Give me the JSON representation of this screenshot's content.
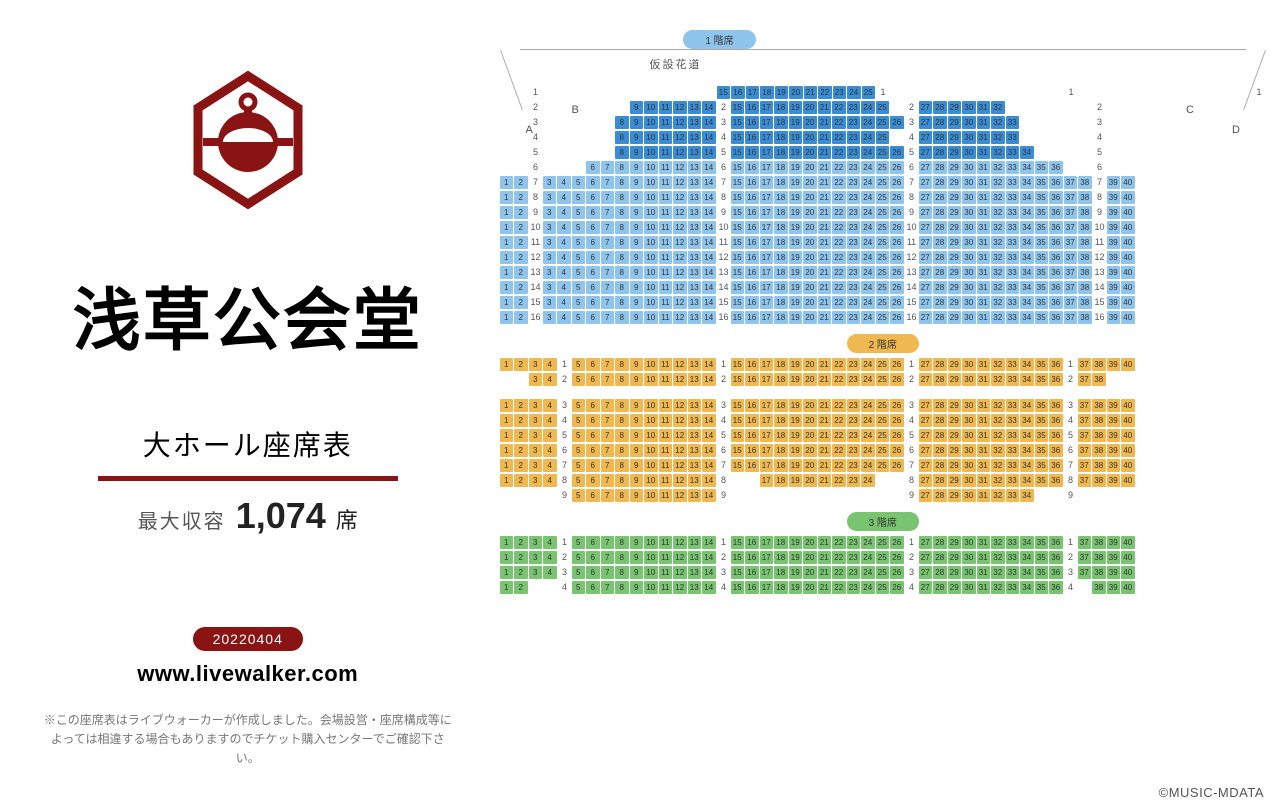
{
  "venue": {
    "title": "浅草公会堂",
    "hall_name": "大ホール座席表",
    "capacity_label": "最大収容",
    "capacity_number": "1,074",
    "capacity_suffix": "席",
    "date_badge": "20220404",
    "url": "www.livewalker.com",
    "disclaimer": "※この座席表はライブウォーカーが作成しました。会場設営・座席構成等によっては相違する場合もありますのでチケット購入センターでご確認下さい。",
    "copyright": "©MUSIC-MDATA",
    "stage_label": "仮設花道"
  },
  "colors": {
    "accent": "#8a1414",
    "floor1_seat": "#8fc5ed",
    "floor1_seat_dark": "#3a8cd4",
    "floor2_seat": "#f0b850",
    "floor3_seat": "#78c470",
    "floor1_label_bg": "#8fc5ed",
    "floor2_label_bg": "#f0b850",
    "floor3_label_bg": "#78c470"
  },
  "floors": [
    {
      "id": "f1",
      "label": "1 階席",
      "seat_color": "#8fc5ed",
      "row_count": 16,
      "sections": [
        "A",
        "B",
        "C",
        "D"
      ]
    },
    {
      "id": "f2",
      "label": "2 階席",
      "seat_color": "#f0b850"
    },
    {
      "id": "f3",
      "label": "3 階席",
      "seat_color": "#78c470"
    }
  ],
  "f1_config": {
    "dark_rows_B": [
      1,
      2,
      3,
      4,
      5
    ],
    "dark_rows_center": [
      1,
      2,
      3,
      4,
      5
    ],
    "dark_rows_C": [
      2,
      3,
      4,
      5
    ],
    "rows": [
      {
        "r": 1,
        "A": [],
        "B": [
          15,
          25
        ],
        "Bstart": 15,
        "center": [],
        "C": [],
        "D": []
      },
      {
        "r": 2,
        "A": [],
        "B": [
          9,
          14
        ],
        "center": [
          15,
          25
        ],
        "C": [
          27,
          32
        ],
        "D": []
      },
      {
        "r": 3,
        "A": [],
        "B": [
          8,
          14
        ],
        "center": [
          15,
          26
        ],
        "C": [
          27,
          33
        ],
        "D": []
      },
      {
        "r": 4,
        "A": [],
        "B": [
          8,
          14
        ],
        "center": [
          15,
          25
        ],
        "C": [
          27,
          33
        ],
        "D": []
      },
      {
        "r": 5,
        "A": [],
        "B": [
          8,
          14
        ],
        "center": [
          15,
          26
        ],
        "C": [
          27,
          34
        ],
        "D": []
      },
      {
        "r": 6,
        "A": [],
        "B": [
          6,
          14
        ],
        "center": [
          15,
          26
        ],
        "C": [
          27,
          36
        ],
        "D": []
      },
      {
        "r": 7,
        "A": [
          1,
          2
        ],
        "B": [
          3,
          14
        ],
        "center": [
          15,
          26
        ],
        "C": [
          27,
          38
        ],
        "D": [
          39,
          40
        ]
      },
      {
        "r": 8,
        "A": [
          1,
          2
        ],
        "B": [
          3,
          14
        ],
        "center": [
          15,
          26
        ],
        "C": [
          27,
          38
        ],
        "D": [
          39,
          40
        ]
      },
      {
        "r": 9,
        "A": [
          1,
          2
        ],
        "B": [
          3,
          14
        ],
        "center": [
          15,
          26
        ],
        "C": [
          27,
          38
        ],
        "D": [
          39,
          40
        ]
      },
      {
        "r": 10,
        "A": [
          1,
          2
        ],
        "B": [
          3,
          14
        ],
        "center": [
          15,
          26
        ],
        "C": [
          27,
          38
        ],
        "D": [
          39,
          40
        ]
      },
      {
        "r": 11,
        "A": [
          1,
          2
        ],
        "B": [
          3,
          14
        ],
        "center": [
          15,
          26
        ],
        "C": [
          27,
          38
        ],
        "D": [
          39,
          40
        ]
      },
      {
        "r": 12,
        "A": [
          1,
          2
        ],
        "B": [
          3,
          14
        ],
        "center": [
          15,
          26
        ],
        "C": [
          27,
          38
        ],
        "D": [
          39,
          40
        ]
      },
      {
        "r": 13,
        "A": [
          1,
          2
        ],
        "B": [
          3,
          14
        ],
        "center": [
          15,
          26
        ],
        "C": [
          27,
          38
        ],
        "D": [
          39,
          40
        ]
      },
      {
        "r": 14,
        "A": [
          1,
          2
        ],
        "B": [
          3,
          14
        ],
        "center": [
          15,
          26
        ],
        "C": [
          27,
          38
        ],
        "D": [
          39,
          40
        ]
      },
      {
        "r": 15,
        "A": [
          1,
          2
        ],
        "B": [
          3,
          14
        ],
        "center": [
          15,
          26
        ],
        "C": [
          27,
          38
        ],
        "D": [
          39,
          40
        ]
      },
      {
        "r": 16,
        "A": [
          1,
          2
        ],
        "B": [
          3,
          14
        ],
        "center": [
          15,
          26
        ],
        "C": [
          27,
          38
        ],
        "D": [
          39,
          40
        ]
      }
    ]
  },
  "f2_config": {
    "rows": [
      {
        "r": 1,
        "L": [
          1,
          4
        ],
        "B": [
          5,
          14
        ],
        "center": [
          15,
          26
        ],
        "C": [
          27,
          36
        ],
        "R": [
          37,
          40
        ]
      },
      {
        "r": 2,
        "L": [
          3,
          4
        ],
        "B": [
          5,
          14
        ],
        "center": [
          15,
          26
        ],
        "C": [
          27,
          36
        ],
        "R": [
          37,
          38
        ]
      },
      {
        "r": 3,
        "L": [
          1,
          4
        ],
        "B": [
          5,
          14
        ],
        "center": [
          15,
          26
        ],
        "C": [
          27,
          36
        ],
        "R": [
          37,
          40
        ]
      },
      {
        "r": 4,
        "L": [
          1,
          4
        ],
        "B": [
          5,
          14
        ],
        "center": [
          15,
          26
        ],
        "C": [
          27,
          36
        ],
        "R": [
          37,
          40
        ]
      },
      {
        "r": 5,
        "L": [
          1,
          4
        ],
        "B": [
          5,
          14
        ],
        "center": [
          15,
          26
        ],
        "C": [
          27,
          36
        ],
        "R": [
          37,
          40
        ]
      },
      {
        "r": 6,
        "L": [
          1,
          4
        ],
        "B": [
          5,
          14
        ],
        "center": [
          15,
          26
        ],
        "C": [
          27,
          36
        ],
        "R": [
          37,
          40
        ]
      },
      {
        "r": 7,
        "L": [
          1,
          4
        ],
        "B": [
          5,
          14
        ],
        "center": [
          15,
          26
        ],
        "C": [
          27,
          36
        ],
        "R": [
          37,
          40
        ]
      },
      {
        "r": 8,
        "L": [
          1,
          4
        ],
        "B": [
          5,
          14
        ],
        "center": [
          17,
          24
        ],
        "C": [
          27,
          36
        ],
        "R": [
          37,
          40
        ]
      },
      {
        "r": 9,
        "L": [],
        "B": [
          5,
          14
        ],
        "center": [],
        "C": [
          27,
          34
        ],
        "R": []
      }
    ],
    "gap_after": 2
  },
  "f3_config": {
    "rows": [
      {
        "r": 1,
        "L": [
          1,
          4
        ],
        "B": [
          5,
          14
        ],
        "center": [
          15,
          26
        ],
        "C": [
          27,
          36
        ],
        "R": [
          37,
          40
        ]
      },
      {
        "r": 2,
        "L": [
          1,
          4
        ],
        "B": [
          5,
          14
        ],
        "center": [
          15,
          26
        ],
        "C": [
          27,
          36
        ],
        "R": [
          37,
          40
        ]
      },
      {
        "r": 3,
        "L": [
          1,
          4
        ],
        "B": [
          5,
          14
        ],
        "center": [
          15,
          26
        ],
        "C": [
          27,
          36
        ],
        "R": [
          37,
          40
        ]
      },
      {
        "r": 4,
        "L": [
          1,
          2
        ],
        "B": [
          5,
          14
        ],
        "center": [
          15,
          26
        ],
        "C": [
          27,
          36
        ],
        "R": [
          38,
          40
        ]
      }
    ]
  }
}
